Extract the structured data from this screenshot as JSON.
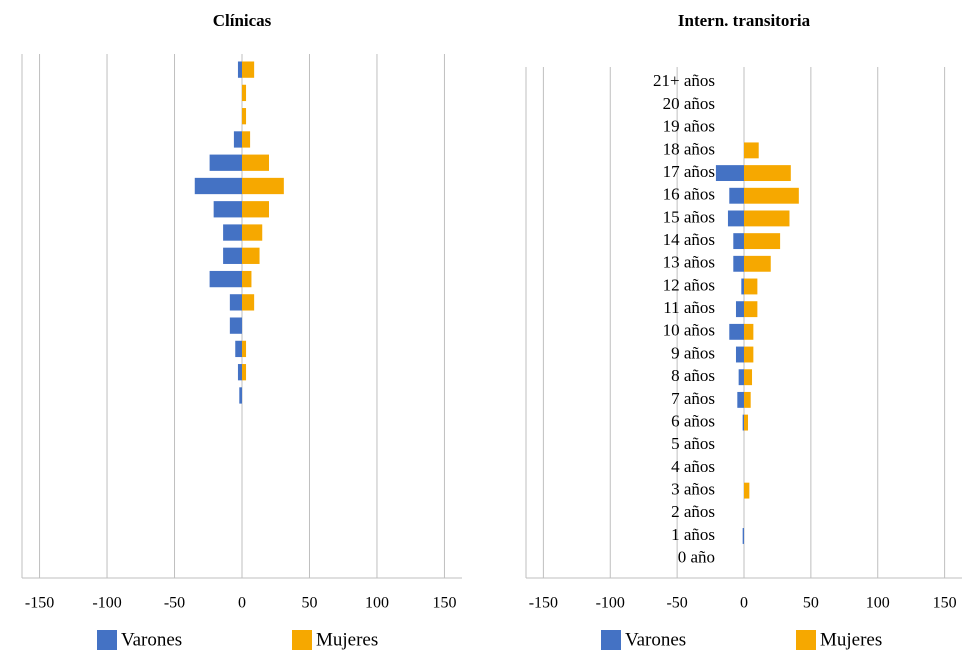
{
  "chart_data": [
    {
      "type": "pyramid",
      "title": "Clínicas",
      "series": [
        {
          "name": "Varones",
          "color": "#4472c4",
          "values": [
            0,
            0,
            0,
            0,
            0,
            0,
            0,
            -2,
            -3,
            -5,
            -9,
            -9,
            -24,
            -14,
            -14,
            -21,
            -35,
            -24,
            -6,
            0,
            0,
            -3
          ]
        },
        {
          "name": "Mujeres",
          "color": "#f6a800",
          "values": [
            0,
            0,
            0,
            0,
            0,
            0,
            0,
            0,
            3,
            3,
            0,
            9,
            7,
            13,
            15,
            20,
            31,
            20,
            6,
            3,
            3,
            9
          ]
        }
      ],
      "xlim": [
        -163,
        163
      ],
      "xticks": [
        -150,
        -100,
        -50,
        0,
        50,
        100,
        150
      ],
      "grid": true
    },
    {
      "type": "pyramid",
      "title": "Intern. transitoria",
      "categories": [
        "0 año",
        "1 años",
        "2 años",
        "3 años",
        "4 años",
        "5 años",
        "6 años",
        "7 años",
        "8 años",
        "9 años",
        "10 años",
        "11 años",
        "12 años",
        "13 años",
        "14 años",
        "15 años",
        "16 años",
        "17 años",
        "18 años",
        "19 años",
        "20 años",
        "21+ años"
      ],
      "series": [
        {
          "name": "Varones",
          "color": "#4472c4",
          "values": [
            0,
            -1,
            0,
            0,
            0,
            0,
            -1,
            -5,
            -4,
            -6,
            -11,
            -6,
            -2,
            -8,
            -8,
            -12,
            -11,
            -21,
            0,
            0,
            0,
            0
          ]
        },
        {
          "name": "Mujeres",
          "color": "#f6a800",
          "values": [
            0,
            0,
            0,
            4,
            0,
            0,
            3,
            5,
            6,
            7,
            7,
            10,
            10,
            20,
            27,
            34,
            41,
            35,
            11,
            0,
            0,
            0
          ]
        }
      ],
      "xlim": [
        -163,
        163
      ],
      "xticks": [
        -150,
        -100,
        -50,
        0,
        50,
        100,
        150
      ],
      "grid": true
    }
  ]
}
